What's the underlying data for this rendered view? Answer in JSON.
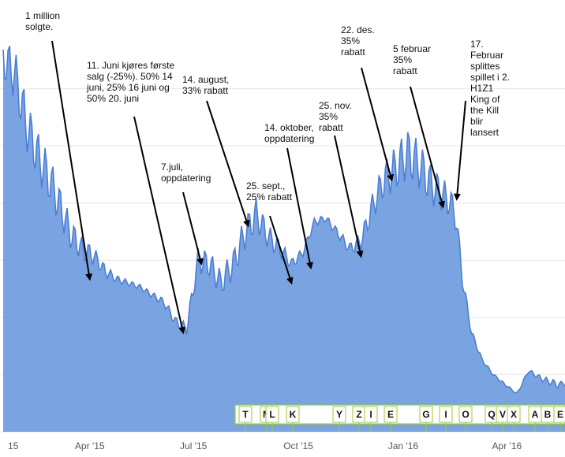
{
  "chart_data": {
    "type": "area",
    "title": "",
    "xlabel": "",
    "ylabel": "",
    "grid": true,
    "colors": {
      "area": "#6f9be0",
      "line": "#4a7fd4",
      "grid": "#e6e6e6",
      "arrow": "#000000",
      "event_box": "#9acd32"
    },
    "x_ticks": [
      {
        "date": "2015-01-15",
        "label": "15"
      },
      {
        "date": "2015-04-01",
        "label": "Apr '15"
      },
      {
        "date": "2015-07-01",
        "label": "Jul '15"
      },
      {
        "date": "2015-10-01",
        "label": "Oct '15"
      },
      {
        "date": "2016-01-01",
        "label": "Jan '16"
      },
      {
        "date": "2016-04-01",
        "label": "Apr '16"
      }
    ],
    "series": [
      {
        "values": [
          [
            "2015-01-15",
            98
          ],
          [
            "2015-01-25",
            94
          ],
          [
            "2015-02-05",
            80
          ],
          [
            "2015-02-15",
            72
          ],
          [
            "2015-02-25",
            66
          ],
          [
            "2015-03-05",
            60
          ],
          [
            "2015-03-15",
            52
          ],
          [
            "2015-03-25",
            48
          ],
          [
            "2015-04-05",
            46
          ],
          [
            "2015-04-15",
            42
          ],
          [
            "2015-04-25",
            40
          ],
          [
            "2015-05-05",
            39
          ],
          [
            "2015-05-15",
            38
          ],
          [
            "2015-05-25",
            36
          ],
          [
            "2015-06-05",
            34
          ],
          [
            "2015-06-15",
            29
          ],
          [
            "2015-06-25",
            27
          ],
          [
            "2015-07-05",
            45
          ],
          [
            "2015-07-15",
            44
          ],
          [
            "2015-07-25",
            39
          ],
          [
            "2015-08-05",
            44
          ],
          [
            "2015-08-15",
            52
          ],
          [
            "2015-08-25",
            57
          ],
          [
            "2015-09-05",
            51
          ],
          [
            "2015-09-15",
            48
          ],
          [
            "2015-09-25",
            44
          ],
          [
            "2015-10-05",
            47
          ],
          [
            "2015-10-15",
            55
          ],
          [
            "2015-10-25",
            56
          ],
          [
            "2015-11-05",
            52
          ],
          [
            "2015-11-15",
            48
          ],
          [
            "2015-11-25",
            50
          ],
          [
            "2015-12-05",
            59
          ],
          [
            "2015-12-15",
            66
          ],
          [
            "2015-12-25",
            69
          ],
          [
            "2016-01-05",
            73
          ],
          [
            "2016-01-15",
            70
          ],
          [
            "2016-01-25",
            65
          ],
          [
            "2016-02-05",
            62
          ],
          [
            "2016-02-12",
            60
          ],
          [
            "2016-02-17",
            55
          ],
          [
            "2016-02-22",
            40
          ],
          [
            "2016-03-01",
            26
          ],
          [
            "2016-03-10",
            19
          ],
          [
            "2016-03-20",
            15
          ],
          [
            "2016-04-01",
            12
          ],
          [
            "2016-04-10",
            10
          ],
          [
            "2016-04-20",
            16
          ],
          [
            "2016-05-01",
            14
          ],
          [
            "2016-05-10",
            13
          ],
          [
            "2016-05-20",
            12
          ]
        ]
      }
    ],
    "annotations": [
      {
        "text": "1 million\nsolgte.",
        "date": "2015-04-01",
        "value": 40
      },
      {
        "text": "11. Juni kjøres første\nsalg (-25%). 50% 14\njuni, 25% 16 juni og\n50% 20. juni",
        "date": "2015-06-22",
        "value": 26
      },
      {
        "text": "7.juli,\noppdatering",
        "date": "2015-07-08",
        "value": 44
      },
      {
        "text": "14. august,\n33% rabatt",
        "date": "2015-08-18",
        "value": 54
      },
      {
        "text": "25. sept.,\n25% rabatt",
        "date": "2015-09-25",
        "value": 39
      },
      {
        "text": "14. oktober,\noppdatering",
        "date": "2015-10-12",
        "value": 43
      },
      {
        "text": "25. nov.\n35%\nrabatt",
        "date": "2015-11-25",
        "value": 46
      },
      {
        "text": "22. des.\n35%\nrabatt",
        "date": "2015-12-22",
        "value": 66
      },
      {
        "text": "5 februar\n35%\nrabatt",
        "date": "2016-02-05",
        "value": 59
      },
      {
        "text": "17.\nFebruar\nsplittes\nspillet i 2.\nH1Z1\nKing of\nthe Kill\nblir\nlansert",
        "date": "2016-02-17",
        "value": 61
      }
    ],
    "event_markers": [
      "T",
      "M",
      "L",
      "K",
      "Y",
      "Z",
      "I",
      "E",
      "G",
      "I",
      "O",
      "Q",
      "V",
      "X",
      "A",
      "B",
      "E"
    ]
  }
}
